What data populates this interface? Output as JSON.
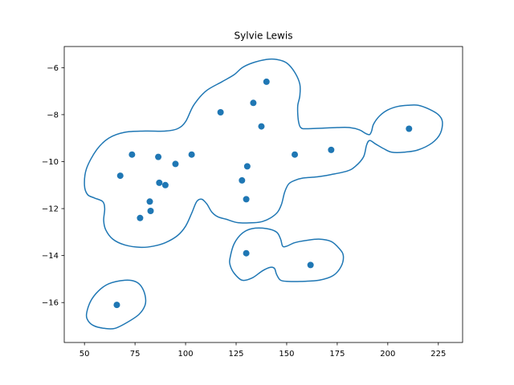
{
  "chart_data": {
    "type": "scatter",
    "title": "Sylvie Lewis",
    "xlabel": "",
    "ylabel": "",
    "xlim": [
      40,
      237
    ],
    "ylim": [
      -17.7,
      -5.1
    ],
    "xticks": [
      50,
      75,
      100,
      125,
      150,
      175,
      200,
      225
    ],
    "yticks": [
      -16,
      -14,
      -12,
      -10,
      -8,
      -6
    ],
    "grid": false,
    "point_color": "#1f77b4",
    "contour_color": "#1f77b4",
    "points": [
      {
        "x": 66,
        "y": -16.1
      },
      {
        "x": 67.7,
        "y": -10.6
      },
      {
        "x": 73.5,
        "y": -9.7
      },
      {
        "x": 77.5,
        "y": -12.4
      },
      {
        "x": 82.3,
        "y": -11.7
      },
      {
        "x": 82.7,
        "y": -12.1
      },
      {
        "x": 86.5,
        "y": -9.8
      },
      {
        "x": 87,
        "y": -10.9
      },
      {
        "x": 90,
        "y": -11.0
      },
      {
        "x": 95,
        "y": -10.1
      },
      {
        "x": 103,
        "y": -9.7
      },
      {
        "x": 117.3,
        "y": -7.9
      },
      {
        "x": 127.9,
        "y": -10.8
      },
      {
        "x": 130,
        "y": -11.6
      },
      {
        "x": 130,
        "y": -13.9
      },
      {
        "x": 130.5,
        "y": -10.2
      },
      {
        "x": 133.5,
        "y": -7.5
      },
      {
        "x": 137.5,
        "y": -8.5
      },
      {
        "x": 140,
        "y": -6.6
      },
      {
        "x": 154,
        "y": -9.7
      },
      {
        "x": 161.8,
        "y": -14.4
      },
      {
        "x": 172,
        "y": -9.5
      },
      {
        "x": 210.5,
        "y": -8.6
      }
    ],
    "contours": [
      [
        [
          50,
          -11
        ],
        [
          51,
          -10.3
        ],
        [
          56,
          -9.5
        ],
        [
          62,
          -9.0
        ],
        [
          70,
          -8.75
        ],
        [
          80,
          -8.7
        ],
        [
          90,
          -8.7
        ],
        [
          96,
          -8.6
        ],
        [
          100,
          -8.3
        ],
        [
          104,
          -7.6
        ],
        [
          110,
          -7.0
        ],
        [
          118,
          -6.6
        ],
        [
          124,
          -6.3
        ],
        [
          128,
          -6.0
        ],
        [
          133,
          -5.8
        ],
        [
          140,
          -5.65
        ],
        [
          145,
          -5.65
        ],
        [
          150,
          -5.8
        ],
        [
          154,
          -6.2
        ],
        [
          156.5,
          -6.7
        ],
        [
          156.5,
          -7.2
        ],
        [
          155.5,
          -7.6
        ],
        [
          155.5,
          -8.0
        ],
        [
          156,
          -8.35
        ],
        [
          157,
          -8.55
        ],
        [
          160,
          -8.6
        ],
        [
          175,
          -8.55
        ],
        [
          181,
          -8.55
        ],
        [
          186,
          -8.65
        ],
        [
          189,
          -8.8
        ],
        [
          191,
          -8.85
        ],
        [
          192,
          -8.7
        ],
        [
          193,
          -8.4
        ],
        [
          196,
          -8.05
        ],
        [
          200,
          -7.8
        ],
        [
          205,
          -7.65
        ],
        [
          210,
          -7.6
        ],
        [
          215,
          -7.6
        ],
        [
          220,
          -7.75
        ],
        [
          225,
          -8.0
        ],
        [
          227,
          -8.3
        ],
        [
          226,
          -8.8
        ],
        [
          222,
          -9.2
        ],
        [
          215,
          -9.5
        ],
        [
          208,
          -9.6
        ],
        [
          202,
          -9.6
        ],
        [
          198,
          -9.45
        ],
        [
          194,
          -9.25
        ],
        [
          191,
          -9.1
        ],
        [
          189.5,
          -9.3
        ],
        [
          188,
          -9.8
        ],
        [
          184,
          -10.2
        ],
        [
          180,
          -10.4
        ],
        [
          172,
          -10.55
        ],
        [
          165,
          -10.65
        ],
        [
          158,
          -10.7
        ],
        [
          154,
          -10.8
        ],
        [
          151,
          -10.95
        ],
        [
          149,
          -11.3
        ],
        [
          147.5,
          -11.8
        ],
        [
          145.5,
          -12.15
        ],
        [
          142,
          -12.4
        ],
        [
          138,
          -12.55
        ],
        [
          134,
          -12.6
        ],
        [
          126,
          -12.6
        ],
        [
          120,
          -12.45
        ],
        [
          116,
          -12.35
        ],
        [
          113,
          -12.15
        ],
        [
          110.5,
          -11.8
        ],
        [
          108,
          -11.6
        ],
        [
          105.5,
          -11.7
        ],
        [
          103,
          -12.2
        ],
        [
          100,
          -12.75
        ],
        [
          96,
          -13.15
        ],
        [
          90,
          -13.45
        ],
        [
          84,
          -13.6
        ],
        [
          78,
          -13.65
        ],
        [
          70,
          -13.55
        ],
        [
          64,
          -13.3
        ],
        [
          60.5,
          -12.9
        ],
        [
          59.5,
          -12.5
        ],
        [
          60,
          -12.0
        ],
        [
          59,
          -11.7
        ],
        [
          55,
          -11.55
        ],
        [
          51.5,
          -11.4
        ],
        [
          50,
          -11
        ]
      ],
      [
        [
          122,
          -14.1
        ],
        [
          124,
          -13.5
        ],
        [
          128,
          -13.05
        ],
        [
          133,
          -12.85
        ],
        [
          140,
          -12.85
        ],
        [
          145,
          -13.0
        ],
        [
          147,
          -13.3
        ],
        [
          148,
          -13.6
        ],
        [
          150,
          -13.6
        ],
        [
          154,
          -13.45
        ],
        [
          160,
          -13.35
        ],
        [
          166,
          -13.3
        ],
        [
          172,
          -13.4
        ],
        [
          176,
          -13.7
        ],
        [
          178,
          -14.0
        ],
        [
          177,
          -14.45
        ],
        [
          173,
          -14.85
        ],
        [
          166,
          -15.05
        ],
        [
          157,
          -15.1
        ],
        [
          151,
          -15.1
        ],
        [
          147,
          -15.05
        ],
        [
          145,
          -14.8
        ],
        [
          144,
          -14.55
        ],
        [
          142,
          -14.5
        ],
        [
          138,
          -14.65
        ],
        [
          133,
          -14.95
        ],
        [
          128,
          -15.05
        ],
        [
          124,
          -14.75
        ],
        [
          122,
          -14.4
        ],
        [
          122,
          -14.1
        ]
      ],
      [
        [
          51,
          -16.5
        ],
        [
          53,
          -15.95
        ],
        [
          57,
          -15.5
        ],
        [
          62,
          -15.2
        ],
        [
          70,
          -15.05
        ],
        [
          75,
          -15.1
        ],
        [
          78,
          -15.3
        ],
        [
          80,
          -15.7
        ],
        [
          80,
          -16.1
        ],
        [
          77,
          -16.5
        ],
        [
          71,
          -16.85
        ],
        [
          65,
          -17.1
        ],
        [
          60,
          -17.1
        ],
        [
          55,
          -17.0
        ],
        [
          52,
          -16.8
        ],
        [
          51,
          -16.5
        ]
      ]
    ]
  }
}
